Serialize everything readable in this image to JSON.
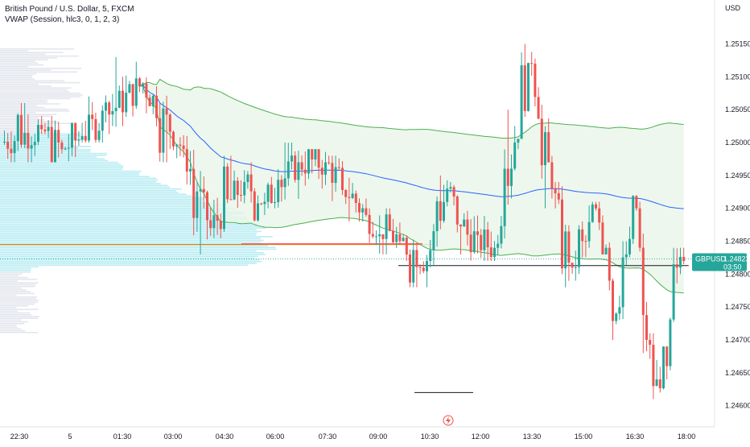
{
  "legend": {
    "symbol_line": "British Pound / U.S. Dollar, 5, FXCM",
    "indicator_line": "VWAP (Session, hlc3, 0, 1, 2, 3)"
  },
  "currency_label": "USD",
  "price_badge": {
    "symbol": "GBPUSD",
    "price": "1.24823",
    "countdown": "03:50",
    "color": "#26a69a"
  },
  "colors": {
    "up": "#26a69a",
    "down": "#ef5350",
    "vwap": "#2962ff",
    "band": "#4caf50",
    "band_fill": "#e8f5e9",
    "profile": "#b2ebf2",
    "profile_gray": "#e0e3eb",
    "poc": "#f57c00",
    "ref": "#131722"
  },
  "icons": {
    "replay": "lightning-bolt-icon"
  },
  "chart_data": {
    "type": "candlestick",
    "symbol": "GBPUSD",
    "timeframe": "5",
    "ylim": [
      1.2458,
      1.2518
    ],
    "x_tick_labels": [
      "22:30",
      "5",
      "01:30",
      "03:00",
      "04:30",
      "06:00",
      "07:30",
      "09:00",
      "10:30",
      "12:00",
      "13:30",
      "15:00",
      "16:30",
      "18:00"
    ],
    "y_ticks": [
      1.246,
      1.2465,
      1.247,
      1.2475,
      1.248,
      1.2485,
      1.249,
      1.2495,
      1.25,
      1.2505,
      1.251,
      1.2515
    ],
    "y_tick_labels": [
      "1.24600",
      "1.24650",
      "1.24700",
      "1.24750",
      "1.24800",
      "1.24850",
      "1.24900",
      "1.24950",
      "1.25000",
      "1.25050",
      "1.25100",
      "1.25150"
    ],
    "last_price": 1.24823,
    "poc_price": 1.24845,
    "horizontal_refs": [
      {
        "price": 1.24846,
        "color": "red"
      },
      {
        "price": 1.24813,
        "color": "black"
      },
      {
        "price": 1.2462,
        "color": "black"
      }
    ],
    "ohlc_segments": [
      [
        1.25,
        1.2506,
        1.2497,
        1.2502,
        12
      ],
      [
        1.2502,
        1.2504,
        1.2497,
        1.2499,
        6
      ],
      [
        1.2499,
        1.2503,
        1.2496,
        1.2501,
        6
      ],
      [
        1.2501,
        1.2513,
        1.25,
        1.2509,
        18
      ],
      [
        1.2509,
        1.2511,
        1.2497,
        1.2499,
        12
      ],
      [
        1.2499,
        1.2501,
        1.2483,
        1.2487,
        8
      ],
      [
        1.2487,
        1.2498,
        1.2485,
        1.2494,
        10
      ],
      [
        1.2494,
        1.2497,
        1.2488,
        1.2491,
        6
      ],
      [
        1.2491,
        1.25,
        1.249,
        1.2497,
        10
      ],
      [
        1.2497,
        1.2499,
        1.2493,
        1.2497,
        8
      ],
      [
        1.2497,
        1.2498,
        1.2488,
        1.2489,
        12
      ],
      [
        1.2489,
        1.249,
        1.2483,
        1.2485,
        10
      ],
      [
        1.2485,
        1.2486,
        1.2478,
        1.2482,
        8
      ],
      [
        1.2482,
        1.2495,
        1.2481,
        1.2493,
        6
      ],
      [
        1.2493,
        1.2494,
        1.2483,
        1.2486,
        6
      ],
      [
        1.2486,
        1.2491,
        1.2482,
        1.2484,
        8
      ],
      [
        1.2484,
        1.2505,
        1.2482,
        1.25,
        6
      ],
      [
        1.25,
        1.2515,
        1.2499,
        1.2512,
        5
      ],
      [
        1.2512,
        1.2513,
        1.249,
        1.2493,
        6
      ],
      [
        1.2493,
        1.2494,
        1.2478,
        1.2481,
        6
      ],
      [
        1.2481,
        1.2488,
        1.2479,
        1.2485,
        4
      ],
      [
        1.2485,
        1.2491,
        1.2484,
        1.249,
        3
      ],
      [
        1.249,
        1.2491,
        1.2483,
        1.2484,
        3
      ],
      [
        1.2484,
        1.2485,
        1.247,
        1.2474,
        3
      ],
      [
        1.2474,
        1.2485,
        1.2472,
        1.2483,
        3
      ],
      [
        1.2483,
        1.2492,
        1.2481,
        1.249,
        3
      ],
      [
        1.249,
        1.2491,
        1.2468,
        1.247,
        3
      ],
      [
        1.247,
        1.2471,
        1.2461,
        1.2464,
        3
      ],
      [
        1.2464,
        1.2469,
        1.2462,
        1.2466,
        3
      ],
      [
        1.2466,
        1.2484,
        1.2465,
        1.2481,
        3
      ],
      [
        1.2481,
        1.2484,
        1.248,
        1.2482,
        2
      ]
    ]
  }
}
